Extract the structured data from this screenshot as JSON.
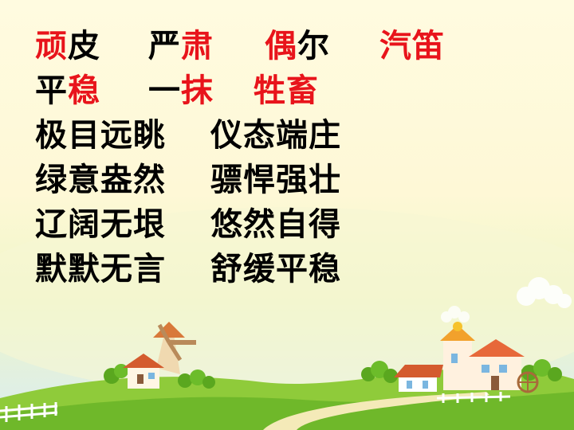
{
  "rows": [
    [
      [
        {
          "t": "顽",
          "red": true
        },
        {
          "t": "皮",
          "red": false
        }
      ],
      [
        {
          "t": "严",
          "red": false
        },
        {
          "t": "肃",
          "red": true
        }
      ],
      [
        {
          "t": "偶",
          "red": true
        },
        {
          "t": "尔",
          "red": false
        }
      ],
      [
        {
          "t": "汽笛",
          "red": true
        }
      ]
    ],
    [
      [
        {
          "t": "平",
          "red": false
        },
        {
          "t": "稳",
          "red": true
        }
      ],
      [
        {
          "t": "一",
          "red": false
        },
        {
          "t": "抹",
          "red": true
        }
      ],
      [
        {
          "t": "牲畜",
          "red": true
        }
      ]
    ],
    [
      [
        {
          "t": "极目远眺",
          "red": false
        }
      ],
      [
        {
          "t": "仪态端庄",
          "red": false
        }
      ]
    ],
    [
      [
        {
          "t": "绿意盎然",
          "red": false
        }
      ],
      [
        {
          "t": "骠悍强壮",
          "red": false
        }
      ]
    ],
    [
      [
        {
          "t": "辽阔无垠",
          "red": false
        }
      ],
      [
        {
          "t": "悠然自得",
          "red": false
        }
      ]
    ],
    [
      [
        {
          "t": "默默无言",
          "red": false
        }
      ],
      [
        {
          "t": "舒缓平稳",
          "red": false
        }
      ]
    ]
  ],
  "colors": {
    "highlight": "#e8141b",
    "text": "#000000",
    "grass": "#7cc22a",
    "sky": "#fffbe0"
  }
}
